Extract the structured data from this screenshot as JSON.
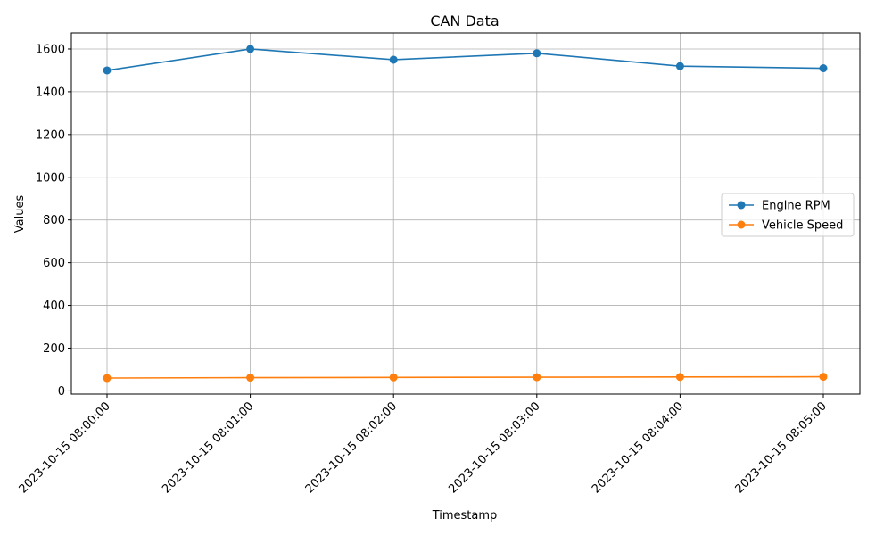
{
  "chart_data": {
    "type": "line",
    "title": "CAN Data",
    "xlabel": "Timestamp",
    "ylabel": "Values",
    "categories": [
      "2023-10-15 08:00:00",
      "2023-10-15 08:01:00",
      "2023-10-15 08:02:00",
      "2023-10-15 08:03:00",
      "2023-10-15 08:04:00",
      "2023-10-15 08:05:00"
    ],
    "series": [
      {
        "name": "Engine RPM",
        "values": [
          1500,
          1600,
          1550,
          1580,
          1520,
          1510
        ],
        "color": "#1f77b4"
      },
      {
        "name": "Vehicle Speed",
        "values": [
          60,
          62,
          63,
          64,
          65,
          66
        ],
        "color": "#ff7f0e"
      }
    ],
    "ylim": [
      -15,
      1675
    ],
    "yticks": [
      0,
      200,
      400,
      600,
      800,
      1000,
      1200,
      1400,
      1600
    ],
    "grid": true,
    "legend_position": "center-right"
  }
}
